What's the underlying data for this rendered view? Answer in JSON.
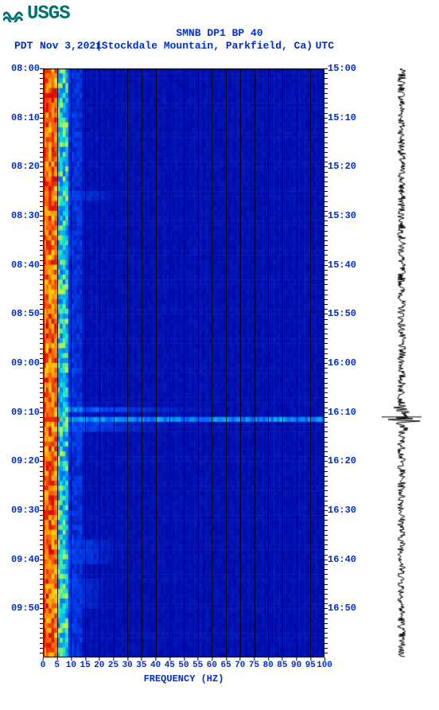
{
  "logo_text": "USGS",
  "title": "SMNB DP1 BP 40",
  "subtitle": {
    "pdt": "PDT",
    "date": "Nov 3,2021",
    "location": "(Stockdale Mountain, Parkfield, Ca)",
    "utc": "UTC"
  },
  "xlabel": "FREQUENCY (HZ)",
  "left_ticks": [
    "08:00",
    "08:10",
    "08:20",
    "08:30",
    "08:40",
    "08:50",
    "09:00",
    "09:10",
    "09:20",
    "09:30",
    "09:40",
    "09:50"
  ],
  "right_ticks": [
    "15:00",
    "15:10",
    "15:20",
    "15:30",
    "15:40",
    "15:50",
    "16:00",
    "16:10",
    "16:20",
    "16:30",
    "16:40",
    "16:50"
  ],
  "x_ticks": [
    0,
    5,
    10,
    15,
    20,
    25,
    30,
    35,
    40,
    45,
    50,
    55,
    60,
    65,
    70,
    75,
    80,
    85,
    90,
    95,
    100
  ],
  "x_lim": [
    0,
    100
  ],
  "time_rows": 120,
  "freq_bins": 100,
  "grid_lines_x": [
    5,
    10,
    15,
    20,
    25,
    30,
    35,
    40,
    45,
    50,
    55,
    60,
    65,
    70,
    75,
    80,
    85,
    90,
    95
  ],
  "colors": {
    "bg": "#ffffff",
    "text": "#002ecc",
    "low": "#00009c",
    "mid": "#0050ff",
    "cyan": "#00e0e0",
    "high": "#ffff00",
    "hot": "#ff7800",
    "vhot": "#dd0000",
    "border": "#000000"
  },
  "spectro_features": {
    "hot_band_freq": [
      0,
      5
    ],
    "warm_band_freq": [
      5,
      9
    ],
    "events": [
      {
        "row": 25,
        "span": 2,
        "freq_to": 30,
        "intensity": 0.5
      },
      {
        "row": 69,
        "span": 1,
        "freq_to": 70,
        "intensity": 0.55
      },
      {
        "row": 72,
        "span": 2,
        "freq_to": 55,
        "intensity": 0.45
      },
      {
        "row": 96,
        "span": 5,
        "freq_to": 32,
        "intensity": 0.5
      },
      {
        "row": 104,
        "span": 6,
        "freq_to": 28,
        "intensity": 0.45
      }
    ],
    "spike_at_row": 71
  },
  "trace": {
    "noise_amp": 5,
    "spike_row": 71,
    "spike_amp": 24
  }
}
